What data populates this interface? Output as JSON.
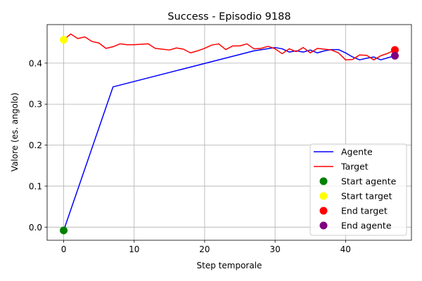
{
  "chart_data": {
    "type": "line",
    "title": "Success - Episodio 9188",
    "xlabel": "Step temporale",
    "ylabel": "Valore (es. angolo)",
    "xlim": [
      -2.35,
      49.35
    ],
    "ylim": [
      -0.032,
      0.494
    ],
    "xticks": [
      0,
      10,
      20,
      30,
      40
    ],
    "yticks": [
      0.0,
      0.1,
      0.2,
      0.3,
      0.4
    ],
    "grid": true,
    "legend_position": "lower right",
    "series": [
      {
        "name": "Agente",
        "color": "#0000ff",
        "x": [
          0,
          7,
          27,
          30,
          31,
          32,
          33,
          34,
          35,
          36,
          37,
          38,
          39,
          40,
          41,
          42,
          43,
          44,
          45,
          46,
          47
        ],
        "y": [
          -0.008,
          0.342,
          0.43,
          0.438,
          0.435,
          0.427,
          0.43,
          0.427,
          0.432,
          0.425,
          0.43,
          0.433,
          0.433,
          0.425,
          0.415,
          0.408,
          0.412,
          0.415,
          0.408,
          0.413,
          0.418
        ]
      },
      {
        "name": "Target",
        "color": "#ff0000",
        "x": [
          0,
          1,
          2,
          3,
          4,
          5,
          6,
          7,
          8,
          9,
          10,
          11,
          12,
          13,
          14,
          15,
          16,
          17,
          18,
          19,
          20,
          21,
          22,
          23,
          24,
          25,
          26,
          27,
          28,
          29,
          30,
          31,
          32,
          33,
          34,
          35,
          36,
          37,
          38,
          39,
          40,
          41,
          42,
          43,
          44,
          45,
          46,
          47
        ],
        "y": [
          0.457,
          0.471,
          0.46,
          0.464,
          0.453,
          0.449,
          0.436,
          0.44,
          0.447,
          0.445,
          0.445,
          0.446,
          0.447,
          0.436,
          0.434,
          0.432,
          0.437,
          0.434,
          0.425,
          0.43,
          0.436,
          0.444,
          0.447,
          0.433,
          0.442,
          0.442,
          0.447,
          0.435,
          0.436,
          0.441,
          0.435,
          0.423,
          0.435,
          0.428,
          0.438,
          0.425,
          0.436,
          0.434,
          0.432,
          0.425,
          0.408,
          0.409,
          0.42,
          0.419,
          0.408,
          0.418,
          0.424,
          0.432
        ]
      }
    ],
    "markers": [
      {
        "name": "Start agente",
        "color": "#008000",
        "x": 0,
        "y": -0.008
      },
      {
        "name": "Start target",
        "color": "#ffff00",
        "x": 0,
        "y": 0.457
      },
      {
        "name": "End target",
        "color": "#ff0000",
        "x": 47,
        "y": 0.432
      },
      {
        "name": "End agente",
        "color": "#800080",
        "x": 47,
        "y": 0.418
      }
    ]
  }
}
